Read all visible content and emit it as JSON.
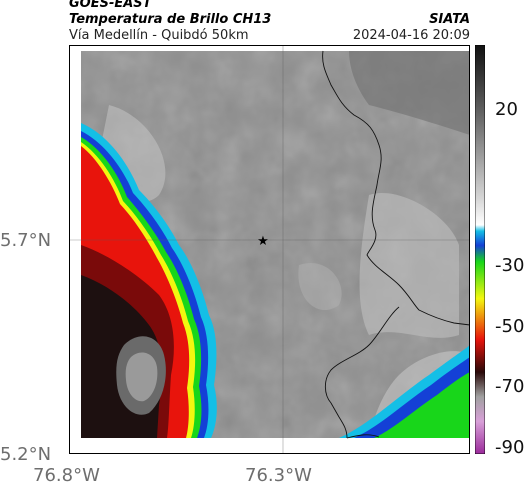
{
  "header": {
    "satellite": "GOES-EAST",
    "product": "Temperatura de Brillo CH13",
    "organization": "SIATA",
    "region": "Vía Medellín - Quibdó 50km",
    "datetime": "2024-04-16 20:09"
  },
  "axes": {
    "lat_labels": [
      "5.7°N",
      "5.2°N"
    ],
    "lon_labels": [
      "76.8°W",
      "76.3°W"
    ],
    "label_color": "#6e6e6e"
  },
  "colorbar": {
    "tick_labels": [
      "20",
      "-30",
      "-50",
      "-70",
      "-90"
    ]
  },
  "colors": {
    "cold_red": "#e8140c",
    "green": "#18d61a",
    "cyan": "#14bfe6",
    "blue": "#1440d6",
    "yellow": "#f3f70f",
    "gray_cloud": "#8f8f8f"
  },
  "map": {
    "marker": "star",
    "features": [
      "coastline-region",
      "department-borders",
      "cloud-tops"
    ]
  }
}
